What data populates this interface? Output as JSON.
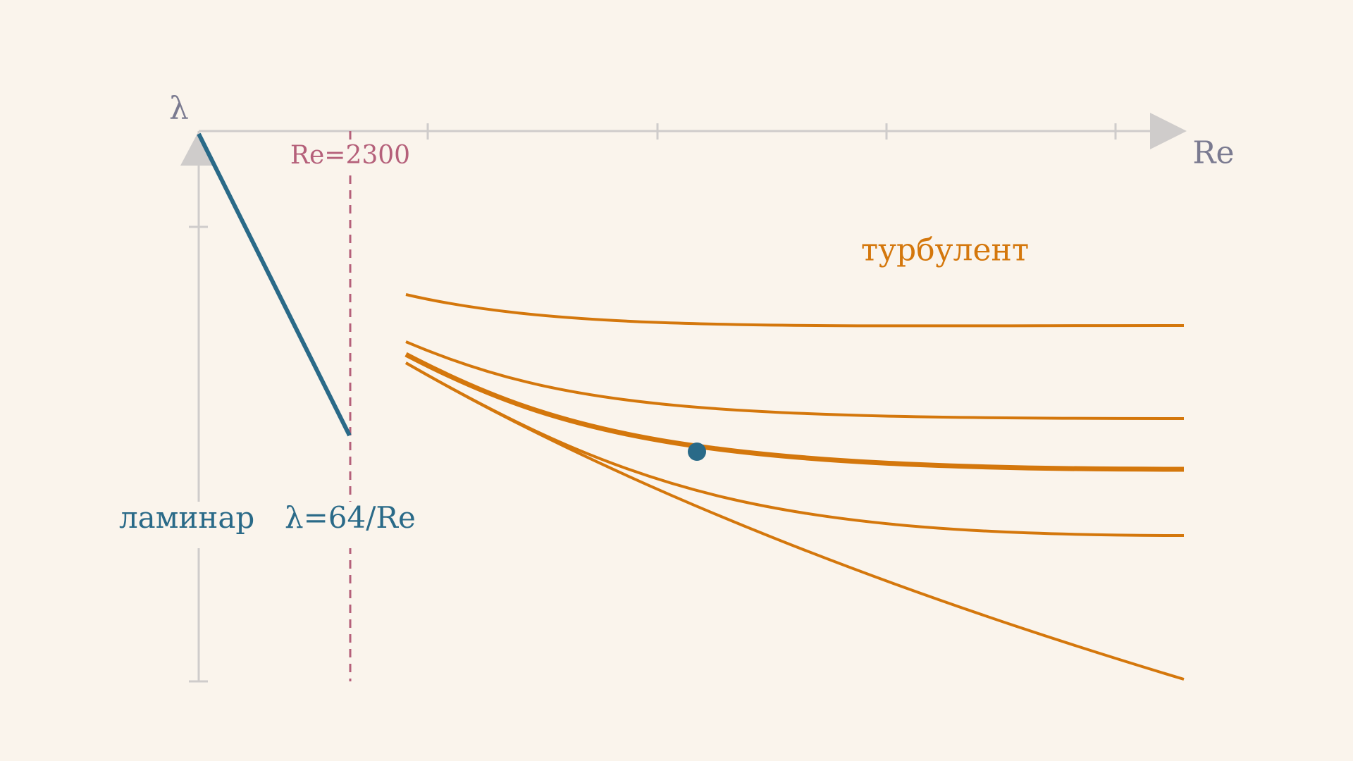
{
  "axes": {
    "y_label": "λ",
    "x_label": "Re"
  },
  "threshold": {
    "label": "Re=2300"
  },
  "regions": {
    "turbulent": "турбулент",
    "laminar": "ламинар",
    "laminar_formula": "λ=64/Re"
  }
}
